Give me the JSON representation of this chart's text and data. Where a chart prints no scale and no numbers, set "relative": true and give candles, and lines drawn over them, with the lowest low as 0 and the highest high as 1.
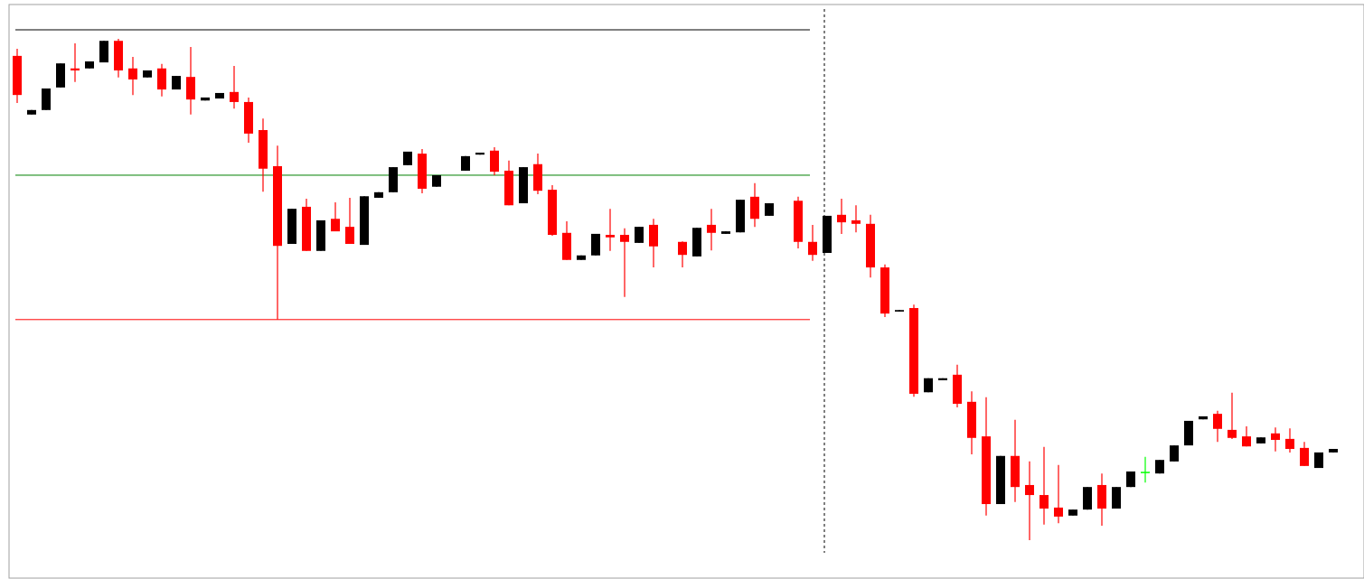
{
  "chart_data": {
    "type": "candlestick",
    "relative": true,
    "categories": [
      null,
      null,
      null,
      null,
      null,
      null,
      null,
      null,
      null,
      null,
      null,
      null,
      null,
      null,
      null,
      null,
      null,
      null,
      null,
      null,
      null,
      null,
      null,
      null,
      null,
      null,
      null,
      null,
      null,
      null,
      null,
      null,
      null,
      null,
      null,
      null,
      null,
      null,
      null,
      null,
      null,
      null,
      null,
      null,
      null,
      null,
      null,
      null,
      null,
      null,
      null,
      null,
      null,
      null,
      null,
      null,
      null,
      null,
      null,
      null,
      null,
      null,
      null,
      null,
      null,
      null,
      null,
      null,
      null,
      null,
      null,
      null,
      null,
      null,
      null,
      null,
      null,
      null,
      null,
      null,
      null,
      null,
      null,
      null,
      null,
      null,
      null,
      null,
      null,
      null,
      null,
      null,
      null,
      null
    ],
    "ohlc": [
      [
        0.966,
        0.98,
        0.872,
        0.888
      ],
      [
        0.849,
        0.858,
        0.849,
        0.858
      ],
      [
        0.858,
        0.901,
        0.858,
        0.901
      ],
      [
        0.903,
        0.951,
        0.903,
        0.951
      ],
      [
        0.941,
        0.991,
        0.914,
        0.937
      ],
      [
        0.941,
        0.955,
        0.941,
        0.955
      ],
      [
        0.953,
        0.996,
        0.953,
        0.996
      ],
      [
        0.996,
        1.0,
        0.923,
        0.937
      ],
      [
        0.941,
        0.964,
        0.888,
        0.919
      ],
      [
        0.923,
        0.937,
        0.923,
        0.937
      ],
      [
        0.941,
        0.95,
        0.885,
        0.899
      ],
      [
        0.899,
        0.926,
        0.899,
        0.926
      ],
      [
        0.924,
        0.984,
        0.849,
        0.879
      ],
      [
        0.877,
        0.883,
        0.877,
        0.883
      ],
      [
        0.881,
        0.892,
        0.881,
        0.892
      ],
      [
        0.894,
        0.946,
        0.861,
        0.874
      ],
      [
        0.874,
        0.883,
        0.793,
        0.811
      ],
      [
        0.818,
        0.841,
        0.695,
        0.741
      ],
      [
        0.746,
        0.787,
        0.44,
        0.587
      ],
      [
        0.591,
        0.661,
        0.591,
        0.661
      ],
      [
        0.665,
        0.681,
        0.577,
        0.577
      ],
      [
        0.577,
        0.638,
        0.577,
        0.638
      ],
      [
        0.641,
        0.674,
        0.616,
        0.616
      ],
      [
        0.625,
        0.683,
        0.591,
        0.591
      ],
      [
        0.589,
        0.686,
        0.589,
        0.686
      ],
      [
        0.683,
        0.694,
        0.683,
        0.694
      ],
      [
        0.694,
        0.744,
        0.694,
        0.744
      ],
      [
        0.748,
        0.775,
        0.748,
        0.775
      ],
      [
        0.771,
        0.78,
        0.692,
        0.701
      ],
      [
        0.705,
        0.728,
        0.705,
        0.728
      ],
      null,
      [
        0.737,
        0.766,
        0.737,
        0.766
      ],
      [
        0.769,
        0.773,
        0.769,
        0.773
      ],
      [
        0.777,
        0.784,
        0.728,
        0.735
      ],
      [
        0.737,
        0.757,
        0.668,
        0.668
      ],
      [
        0.672,
        0.744,
        0.672,
        0.744
      ],
      [
        0.75,
        0.771,
        0.69,
        0.697
      ],
      [
        0.699,
        0.708,
        0.607,
        0.609
      ],
      [
        0.613,
        0.636,
        0.559,
        0.559
      ],
      [
        0.559,
        0.568,
        0.559,
        0.568
      ],
      [
        0.568,
        0.611,
        0.568,
        0.611
      ],
      [
        0.609,
        0.661,
        0.577,
        0.604
      ],
      [
        0.609,
        0.622,
        0.485,
        0.595
      ],
      [
        0.593,
        0.625,
        0.593,
        0.625
      ],
      [
        0.629,
        0.641,
        0.544,
        0.586
      ],
      null,
      [
        0.595,
        0.596,
        0.544,
        0.569
      ],
      [
        0.566,
        0.623,
        0.566,
        0.623
      ],
      [
        0.629,
        0.661,
        0.578,
        0.613
      ],
      [
        0.611,
        0.616,
        0.611,
        0.616
      ],
      [
        0.614,
        0.679,
        0.614,
        0.679
      ],
      [
        0.685,
        0.712,
        0.625,
        0.641
      ],
      [
        0.647,
        0.672,
        0.647,
        0.672
      ],
      null,
      [
        0.677,
        0.685,
        0.582,
        0.595
      ],
      [
        0.595,
        0.629,
        0.557,
        0.569
      ],
      [
        0.573,
        0.647,
        0.573,
        0.647
      ],
      [
        0.649,
        0.681,
        0.611,
        0.634
      ],
      [
        0.638,
        0.668,
        0.614,
        0.631
      ],
      [
        0.631,
        0.649,
        0.524,
        0.544
      ],
      [
        0.544,
        0.55,
        0.445,
        0.452
      ],
      [
        0.456,
        0.459,
        0.456,
        0.459
      ],
      [
        0.463,
        0.47,
        0.286,
        0.292
      ],
      [
        0.295,
        0.323,
        0.295,
        0.323
      ],
      [
        0.319,
        0.323,
        0.319,
        0.323
      ],
      [
        0.33,
        0.35,
        0.265,
        0.272
      ],
      [
        0.276,
        0.297,
        0.171,
        0.204
      ],
      [
        0.207,
        0.285,
        0.049,
        0.072
      ],
      [
        0.072,
        0.168,
        0.072,
        0.168
      ],
      [
        0.168,
        0.24,
        0.076,
        0.106
      ],
      [
        0.11,
        0.157,
        0.0,
        0.09
      ],
      [
        0.09,
        0.186,
        0.031,
        0.063
      ],
      [
        0.065,
        0.15,
        0.034,
        0.047
      ],
      [
        0.049,
        0.061,
        0.049,
        0.061
      ],
      [
        0.061,
        0.106,
        0.061,
        0.106
      ],
      [
        0.11,
        0.133,
        0.029,
        0.063
      ],
      [
        0.063,
        0.106,
        0.063,
        0.106
      ],
      [
        0.106,
        0.137,
        0.106,
        0.137
      ],
      [
        0.135,
        0.166,
        0.115,
        0.135
      ],
      [
        0.133,
        0.16,
        0.133,
        0.16
      ],
      [
        0.157,
        0.189,
        0.157,
        0.189
      ],
      [
        0.189,
        0.238,
        0.189,
        0.238
      ],
      [
        0.241,
        0.247,
        0.241,
        0.247
      ],
      [
        0.252,
        0.258,
        0.196,
        0.222
      ],
      [
        0.22,
        0.294,
        0.202,
        0.204
      ],
      [
        0.207,
        0.227,
        0.187,
        0.187
      ],
      [
        0.193,
        0.205,
        0.193,
        0.205
      ],
      [
        0.213,
        0.225,
        0.177,
        0.2
      ],
      [
        0.202,
        0.223,
        0.175,
        0.182
      ],
      [
        0.184,
        0.196,
        0.148,
        0.148
      ],
      [
        0.144,
        0.175,
        0.144,
        0.175
      ],
      [
        0.175,
        0.182,
        0.175,
        0.182
      ],
      null,
      null
    ],
    "colors": [
      "#ff0000",
      "#000000",
      "#000000",
      "#000000",
      "#ff0000",
      "#000000",
      "#000000",
      "#ff0000",
      "#ff0000",
      "#000000",
      "#ff0000",
      "#000000",
      "#ff0000",
      "#000000",
      "#000000",
      "#ff0000",
      "#ff0000",
      "#ff0000",
      "#ff0000",
      "#000000",
      "#ff0000",
      "#000000",
      "#ff0000",
      "#ff0000",
      "#000000",
      "#000000",
      "#000000",
      "#000000",
      "#ff0000",
      "#000000",
      null,
      "#000000",
      "#000000",
      "#ff0000",
      "#ff0000",
      "#000000",
      "#ff0000",
      "#ff0000",
      "#ff0000",
      "#000000",
      "#000000",
      "#ff0000",
      "#ff0000",
      "#000000",
      "#ff0000",
      null,
      "#ff0000",
      "#000000",
      "#ff0000",
      "#000000",
      "#000000",
      "#ff0000",
      "#000000",
      null,
      "#ff0000",
      "#ff0000",
      "#000000",
      "#ff0000",
      "#ff0000",
      "#ff0000",
      "#ff0000",
      "#000000",
      "#ff0000",
      "#000000",
      "#000000",
      "#ff0000",
      "#ff0000",
      "#ff0000",
      "#000000",
      "#ff0000",
      "#ff0000",
      "#ff0000",
      "#ff0000",
      "#000000",
      "#000000",
      "#ff0000",
      "#000000",
      "#000000",
      "#00ff00",
      "#000000",
      "#000000",
      "#000000",
      "#000000",
      "#ff0000",
      "#ff0000",
      "#ff0000",
      "#000000",
      "#ff0000",
      "#ff0000",
      "#ff0000",
      "#000000",
      "#000000",
      null,
      null
    ],
    "ref_lines": [
      {
        "axis": "y",
        "value": 1.018,
        "color": "#000000"
      },
      {
        "axis": "y",
        "value": 0.728,
        "color": "#008000"
      },
      {
        "axis": "y",
        "value": 0.44,
        "color": "#ff0000"
      }
    ]
  }
}
